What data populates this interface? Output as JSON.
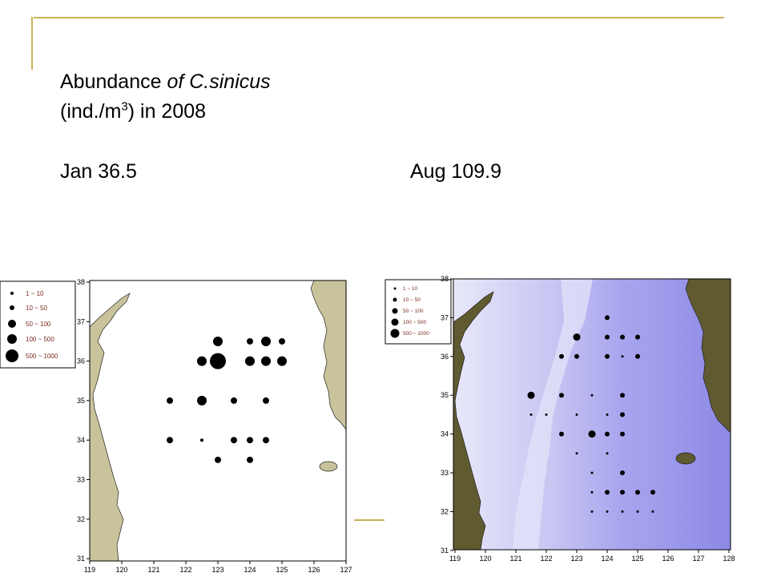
{
  "title": {
    "line1_prefix": "Abundance ",
    "line1_italic": "of C.sinicus",
    "line2_prefix": "(ind./m",
    "line2_sup": "3",
    "line2_suffix": ")  in 2008"
  },
  "labels": {
    "jan": "Jan   36.5",
    "aug": "Aug   109.9"
  },
  "legend": {
    "items": [
      "1  ~  10",
      "10  ~  50",
      "50  ~  100",
      "100  ~  500",
      "500  ~  1000"
    ]
  },
  "maps": {
    "x_ticks": [
      "119",
      "120",
      "121",
      "122",
      "123",
      "124",
      "125",
      "126",
      "127"
    ],
    "y_ticks": [
      "31",
      "32",
      "33",
      "34",
      "35",
      "36",
      "37",
      "38"
    ],
    "x_ticks_aug": [
      "119",
      "120",
      "121",
      "122",
      "123",
      "124",
      "125",
      "126",
      "127",
      "128"
    ],
    "colors": {
      "land": "#c8c39a",
      "land_aug": "#5f5a30",
      "sea_aug": "#b8b6f0",
      "dot": "#000000"
    }
  },
  "stations_jan": [
    {
      "lon": 123,
      "lat": 36.5,
      "cls": 3
    },
    {
      "lon": 124,
      "lat": 36.5,
      "cls": 2
    },
    {
      "lon": 124.5,
      "lat": 36.5,
      "cls": 3
    },
    {
      "lon": 125,
      "lat": 36.5,
      "cls": 2
    },
    {
      "lon": 122.5,
      "lat": 36,
      "cls": 3
    },
    {
      "lon": 123,
      "lat": 36,
      "cls": 5
    },
    {
      "lon": 124,
      "lat": 36,
      "cls": 3
    },
    {
      "lon": 124.5,
      "lat": 36,
      "cls": 3
    },
    {
      "lon": 125,
      "lat": 36,
      "cls": 3
    },
    {
      "lon": 121.5,
      "lat": 35,
      "cls": 2
    },
    {
      "lon": 122.5,
      "lat": 35,
      "cls": 3
    },
    {
      "lon": 123.5,
      "lat": 35,
      "cls": 2
    },
    {
      "lon": 124.5,
      "lat": 35,
      "cls": 2
    },
    {
      "lon": 121.5,
      "lat": 34,
      "cls": 2
    },
    {
      "lon": 122.5,
      "lat": 34,
      "cls": 1
    },
    {
      "lon": 123.5,
      "lat": 34,
      "cls": 2
    },
    {
      "lon": 124,
      "lat": 34,
      "cls": 2
    },
    {
      "lon": 124.5,
      "lat": 34,
      "cls": 2
    },
    {
      "lon": 123,
      "lat": 33.5,
      "cls": 2
    },
    {
      "lon": 124,
      "lat": 33.5,
      "cls": 2
    }
  ],
  "stations_aug": [
    {
      "lon": 124,
      "lat": 37,
      "cls": 2
    },
    {
      "lon": 123,
      "lat": 36.5,
      "cls": 3
    },
    {
      "lon": 124,
      "lat": 36.5,
      "cls": 2
    },
    {
      "lon": 124.5,
      "lat": 36.5,
      "cls": 2
    },
    {
      "lon": 125,
      "lat": 36.5,
      "cls": 2
    },
    {
      "lon": 122.5,
      "lat": 36,
      "cls": 2
    },
    {
      "lon": 123,
      "lat": 36,
      "cls": 2
    },
    {
      "lon": 124,
      "lat": 36,
      "cls": 2
    },
    {
      "lon": 124.5,
      "lat": 36,
      "cls": 1
    },
    {
      "lon": 125,
      "lat": 36,
      "cls": 2
    },
    {
      "lon": 121.5,
      "lat": 35,
      "cls": 3
    },
    {
      "lon": 122.5,
      "lat": 35,
      "cls": 2
    },
    {
      "lon": 123.5,
      "lat": 35,
      "cls": 1
    },
    {
      "lon": 124.5,
      "lat": 35,
      "cls": 2
    },
    {
      "lon": 121.5,
      "lat": 34.5,
      "cls": 1
    },
    {
      "lon": 122,
      "lat": 34.5,
      "cls": 1
    },
    {
      "lon": 123,
      "lat": 34.5,
      "cls": 1
    },
    {
      "lon": 124,
      "lat": 34.5,
      "cls": 1
    },
    {
      "lon": 124.5,
      "lat": 34.5,
      "cls": 2
    },
    {
      "lon": 122.5,
      "lat": 34,
      "cls": 2
    },
    {
      "lon": 123.5,
      "lat": 34,
      "cls": 3
    },
    {
      "lon": 124,
      "lat": 34,
      "cls": 2
    },
    {
      "lon": 124.5,
      "lat": 34,
      "cls": 2
    },
    {
      "lon": 123,
      "lat": 33.5,
      "cls": 1
    },
    {
      "lon": 124,
      "lat": 33.5,
      "cls": 1
    },
    {
      "lon": 123.5,
      "lat": 33,
      "cls": 1
    },
    {
      "lon": 124.5,
      "lat": 33,
      "cls": 2
    },
    {
      "lon": 123.5,
      "lat": 32.5,
      "cls": 1
    },
    {
      "lon": 124,
      "lat": 32.5,
      "cls": 2
    },
    {
      "lon": 124.5,
      "lat": 32.5,
      "cls": 2
    },
    {
      "lon": 125,
      "lat": 32.5,
      "cls": 2
    },
    {
      "lon": 125.5,
      "lat": 32.5,
      "cls": 2
    },
    {
      "lon": 123.5,
      "lat": 32,
      "cls": 1
    },
    {
      "lon": 124,
      "lat": 32,
      "cls": 1
    },
    {
      "lon": 124.5,
      "lat": 32,
      "cls": 1
    },
    {
      "lon": 125,
      "lat": 32,
      "cls": 1
    },
    {
      "lon": 125.5,
      "lat": 32,
      "cls": 1
    }
  ]
}
